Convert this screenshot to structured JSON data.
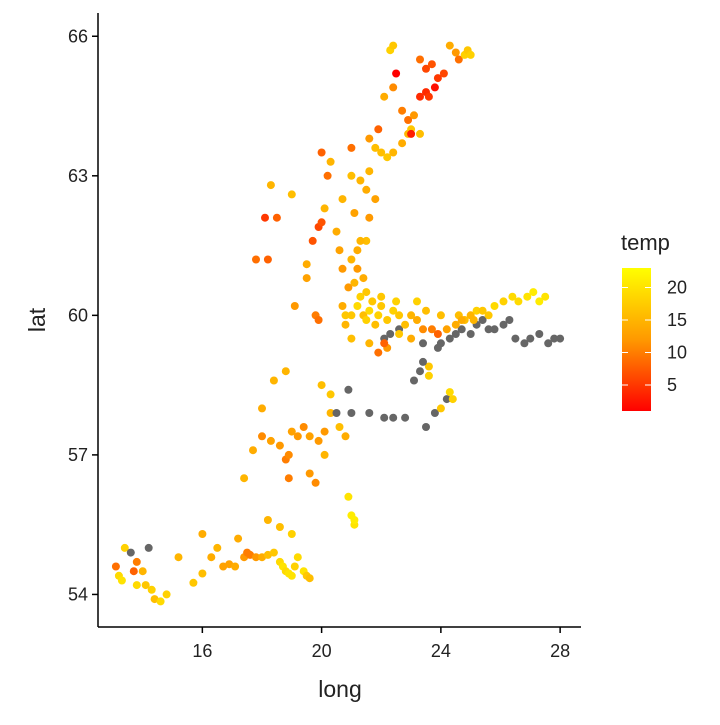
{
  "chart_data": {
    "type": "scatter",
    "title": "",
    "xlabel": "long",
    "ylabel": "lat",
    "xlim": [
      12.5,
      28.7
    ],
    "ylim": [
      53.3,
      66.5
    ],
    "xticks": [
      16,
      20,
      24,
      28
    ],
    "yticks": [
      54,
      57,
      60,
      63,
      66
    ],
    "grid": false,
    "legend": {
      "title": "temp",
      "placement": "right",
      "type": "colorbar",
      "min": 1,
      "max": 23,
      "ticks": [
        5,
        10,
        15,
        20
      ],
      "low_color": "#ff0000",
      "mid_color": "#ff9900",
      "high_color": "#ffff00"
    },
    "na_color": "#666666",
    "points": [
      [
        13.1,
        54.6,
        9
      ],
      [
        13.2,
        54.4,
        19
      ],
      [
        13.3,
        54.3,
        20
      ],
      [
        13.4,
        55.0,
        18
      ],
      [
        13.6,
        54.9,
        null
      ],
      [
        13.7,
        54.5,
        8
      ],
      [
        13.8,
        54.7,
        10
      ],
      [
        13.8,
        54.2,
        19
      ],
      [
        14.0,
        54.5,
        15
      ],
      [
        14.1,
        54.2,
        17
      ],
      [
        14.2,
        55.0,
        null
      ],
      [
        14.3,
        54.1,
        18
      ],
      [
        14.4,
        53.9,
        16
      ],
      [
        14.6,
        53.85,
        19
      ],
      [
        14.8,
        54.0,
        18
      ],
      [
        15.2,
        54.8,
        15
      ],
      [
        15.7,
        54.25,
        17
      ],
      [
        16.0,
        54.45,
        16
      ],
      [
        16.0,
        55.3,
        14
      ],
      [
        16.3,
        54.8,
        14
      ],
      [
        16.5,
        55.0,
        15
      ],
      [
        16.7,
        54.6,
        13
      ],
      [
        16.9,
        54.65,
        13
      ],
      [
        17.1,
        54.6,
        14
      ],
      [
        17.2,
        55.2,
        14
      ],
      [
        17.4,
        54.8,
        12
      ],
      [
        17.5,
        54.9,
        10
      ],
      [
        17.6,
        54.85,
        10
      ],
      [
        17.8,
        54.8,
        12
      ],
      [
        18.0,
        54.8,
        14
      ],
      [
        18.2,
        54.85,
        16
      ],
      [
        18.4,
        54.9,
        17
      ],
      [
        18.6,
        54.7,
        19
      ],
      [
        18.7,
        54.6,
        20
      ],
      [
        18.8,
        54.5,
        19
      ],
      [
        18.9,
        54.45,
        20
      ],
      [
        19.0,
        54.4,
        20
      ],
      [
        19.1,
        54.6,
        18
      ],
      [
        19.2,
        54.8,
        19
      ],
      [
        19.4,
        54.5,
        20
      ],
      [
        19.5,
        54.4,
        17
      ],
      [
        19.6,
        54.35,
        16
      ],
      [
        18.2,
        55.6,
        15
      ],
      [
        18.6,
        55.45,
        16
      ],
      [
        19.0,
        55.3,
        18
      ],
      [
        18.0,
        57.4,
        11
      ],
      [
        18.3,
        57.3,
        13
      ],
      [
        18.6,
        57.2,
        12
      ],
      [
        18.8,
        56.9,
        10
      ],
      [
        18.9,
        57.0,
        11
      ],
      [
        19.0,
        57.5,
        13
      ],
      [
        18.9,
        56.5,
        10
      ],
      [
        19.2,
        57.4,
        12
      ],
      [
        19.4,
        57.6,
        11
      ],
      [
        19.6,
        56.6,
        12
      ],
      [
        19.6,
        57.4,
        13
      ],
      [
        19.8,
        56.4,
        11
      ],
      [
        19.9,
        57.3,
        12
      ],
      [
        20.1,
        57.5,
        12
      ],
      [
        20.1,
        57.0,
        15
      ],
      [
        20.3,
        57.9,
        15
      ],
      [
        20.6,
        57.6,
        16
      ],
      [
        20.8,
        57.4,
        14
      ],
      [
        20.9,
        56.1,
        20
      ],
      [
        21.0,
        55.7,
        21
      ],
      [
        21.1,
        55.5,
        20
      ],
      [
        21.1,
        55.6,
        21
      ],
      [
        20.0,
        58.5,
        16
      ],
      [
        20.3,
        58.3,
        17
      ],
      [
        18.8,
        58.8,
        15
      ],
      [
        18.4,
        58.6,
        15
      ],
      [
        18.0,
        58.0,
        14
      ],
      [
        17.7,
        57.1,
        14
      ],
      [
        17.4,
        56.5,
        15
      ],
      [
        17.8,
        61.2,
        9
      ],
      [
        18.2,
        61.2,
        8
      ],
      [
        18.1,
        62.1,
        5
      ],
      [
        18.5,
        62.1,
        8
      ],
      [
        18.3,
        62.8,
        15
      ],
      [
        19.0,
        62.6,
        16
      ],
      [
        19.1,
        60.2,
        12
      ],
      [
        19.5,
        61.1,
        14
      ],
      [
        19.5,
        60.8,
        13
      ],
      [
        19.8,
        60.0,
        10
      ],
      [
        19.9,
        59.9,
        9
      ],
      [
        19.7,
        61.6,
        7
      ],
      [
        19.9,
        61.9,
        6
      ],
      [
        20.0,
        62.0,
        7
      ],
      [
        20.0,
        63.5,
        8
      ],
      [
        20.1,
        62.3,
        15
      ],
      [
        20.2,
        63.0,
        9
      ],
      [
        20.3,
        63.3,
        15
      ],
      [
        20.5,
        61.8,
        14
      ],
      [
        20.6,
        61.4,
        13
      ],
      [
        20.7,
        61.0,
        12
      ],
      [
        20.7,
        62.5,
        15
      ],
      [
        20.8,
        59.8,
        15
      ],
      [
        20.9,
        60.6,
        12
      ],
      [
        21.0,
        61.2,
        15
      ],
      [
        21.0,
        63.6,
        9
      ],
      [
        21.1,
        62.2,
        13
      ],
      [
        21.2,
        61.4,
        14
      ],
      [
        21.2,
        61.0,
        12
      ],
      [
        21.4,
        60.8,
        14
      ],
      [
        21.5,
        61.6,
        16
      ],
      [
        21.6,
        62.1,
        12
      ],
      [
        21.6,
        63.1,
        15
      ],
      [
        21.8,
        62.5,
        13
      ],
      [
        21.0,
        63.0,
        16
      ],
      [
        21.3,
        62.9,
        15
      ],
      [
        21.5,
        62.7,
        14
      ],
      [
        21.8,
        63.6,
        16
      ],
      [
        22.0,
        63.5,
        16
      ],
      [
        22.2,
        63.4,
        17
      ],
      [
        22.4,
        63.5,
        15
      ],
      [
        22.7,
        63.7,
        14
      ],
      [
        22.9,
        63.9,
        15
      ],
      [
        23.0,
        64.0,
        17
      ],
      [
        23.3,
        63.9,
        16
      ],
      [
        21.6,
        63.8,
        12
      ],
      [
        21.9,
        64.0,
        8
      ],
      [
        22.1,
        64.7,
        14
      ],
      [
        22.4,
        64.9,
        11
      ],
      [
        22.7,
        64.4,
        10
      ],
      [
        22.9,
        64.2,
        9
      ],
      [
        23.1,
        64.3,
        12
      ],
      [
        22.3,
        65.7,
        18
      ],
      [
        22.4,
        65.8,
        17
      ],
      [
        23.3,
        65.5,
        9
      ],
      [
        23.5,
        64.8,
        4
      ],
      [
        23.6,
        64.7,
        5
      ],
      [
        23.5,
        65.3,
        6
      ],
      [
        23.7,
        65.4,
        7
      ],
      [
        23.9,
        65.1,
        5
      ],
      [
        24.1,
        65.2,
        6
      ],
      [
        24.3,
        65.8,
        14
      ],
      [
        24.5,
        65.65,
        12
      ],
      [
        24.6,
        65.5,
        9
      ],
      [
        24.8,
        65.6,
        18
      ],
      [
        24.9,
        65.7,
        17
      ],
      [
        25.0,
        65.6,
        18
      ],
      [
        23.0,
        63.9,
        3
      ],
      [
        22.5,
        65.2,
        1
      ],
      [
        23.8,
        64.9,
        2
      ],
      [
        23.3,
        64.7,
        4
      ],
      [
        20.9,
        58.4,
        null
      ],
      [
        20.5,
        57.9,
        null
      ],
      [
        21.0,
        57.9,
        null
      ],
      [
        21.6,
        57.9,
        null
      ],
      [
        22.1,
        57.8,
        null
      ],
      [
        22.4,
        57.8,
        null
      ],
      [
        22.8,
        57.8,
        null
      ],
      [
        23.5,
        57.6,
        null
      ],
      [
        23.8,
        57.9,
        null
      ],
      [
        24.2,
        58.2,
        null
      ],
      [
        24.4,
        58.2,
        18
      ],
      [
        24.3,
        58.35,
        19
      ],
      [
        24.0,
        58.0,
        17
      ],
      [
        23.6,
        58.7,
        18
      ],
      [
        23.6,
        58.9,
        17
      ],
      [
        23.4,
        59.0,
        null
      ],
      [
        23.3,
        58.8,
        null
      ],
      [
        23.1,
        58.6,
        null
      ],
      [
        23.4,
        59.4,
        null
      ],
      [
        23.9,
        59.3,
        null
      ],
      [
        24.0,
        59.4,
        null
      ],
      [
        24.3,
        59.5,
        null
      ],
      [
        24.5,
        59.6,
        null
      ],
      [
        24.7,
        59.7,
        null
      ],
      [
        25.0,
        59.6,
        null
      ],
      [
        25.2,
        59.8,
        null
      ],
      [
        25.4,
        59.9,
        null
      ],
      [
        25.6,
        59.7,
        null
      ],
      [
        25.8,
        59.7,
        null
      ],
      [
        26.1,
        59.8,
        null
      ],
      [
        26.3,
        59.9,
        null
      ],
      [
        26.5,
        59.5,
        null
      ],
      [
        26.8,
        59.4,
        null
      ],
      [
        27.0,
        59.5,
        null
      ],
      [
        27.3,
        59.6,
        null
      ],
      [
        27.6,
        59.4,
        null
      ],
      [
        27.8,
        59.5,
        null
      ],
      [
        28.0,
        59.5,
        null
      ],
      [
        22.1,
        59.5,
        null
      ],
      [
        22.3,
        59.6,
        null
      ],
      [
        22.6,
        59.7,
        null
      ],
      [
        22.2,
        59.3,
        12
      ],
      [
        21.0,
        60.0,
        17
      ],
      [
        21.2,
        60.2,
        19
      ],
      [
        21.3,
        60.4,
        18
      ],
      [
        21.4,
        60.0,
        16
      ],
      [
        21.5,
        59.9,
        18
      ],
      [
        21.6,
        60.1,
        19
      ],
      [
        21.7,
        60.3,
        17
      ],
      [
        21.8,
        59.8,
        16
      ],
      [
        21.9,
        60.0,
        18
      ],
      [
        22.0,
        60.2,
        17
      ],
      [
        22.2,
        59.9,
        17
      ],
      [
        22.4,
        60.1,
        18
      ],
      [
        22.6,
        60.0,
        17
      ],
      [
        22.8,
        59.8,
        16
      ],
      [
        23.0,
        60.0,
        15
      ],
      [
        23.2,
        59.9,
        14
      ],
      [
        23.4,
        59.7,
        11
      ],
      [
        23.7,
        59.7,
        10
      ],
      [
        23.9,
        59.6,
        8
      ],
      [
        24.2,
        59.7,
        13
      ],
      [
        24.5,
        59.8,
        14
      ],
      [
        24.8,
        59.9,
        16
      ],
      [
        25.0,
        60.0,
        15
      ],
      [
        25.2,
        60.1,
        18
      ],
      [
        25.4,
        60.1,
        17
      ],
      [
        25.6,
        60.0,
        17
      ],
      [
        25.8,
        60.2,
        19
      ],
      [
        26.1,
        60.3,
        18
      ],
      [
        26.4,
        60.4,
        19
      ],
      [
        26.6,
        60.3,
        19
      ],
      [
        26.9,
        60.4,
        20
      ],
      [
        27.1,
        60.5,
        21
      ],
      [
        27.3,
        60.3,
        21
      ],
      [
        27.5,
        60.4,
        20
      ],
      [
        20.7,
        60.2,
        14
      ],
      [
        21.0,
        59.5,
        16
      ],
      [
        21.6,
        59.4,
        15
      ],
      [
        21.9,
        59.2,
        9
      ],
      [
        22.1,
        59.4,
        8
      ],
      [
        22.6,
        59.6,
        17
      ],
      [
        23.0,
        59.5,
        14
      ],
      [
        24.6,
        60.0,
        16
      ],
      [
        24.7,
        59.9,
        14
      ],
      [
        25.1,
        59.9,
        15
      ],
      [
        21.1,
        60.7,
        15
      ],
      [
        21.3,
        61.6,
        15
      ],
      [
        20.8,
        60.0,
        17
      ],
      [
        21.5,
        60.5,
        17
      ],
      [
        22.0,
        60.4,
        17
      ],
      [
        22.5,
        60.3,
        18
      ],
      [
        23.2,
        60.3,
        18
      ],
      [
        23.5,
        60.1,
        16
      ],
      [
        24.0,
        60.0,
        16
      ]
    ]
  }
}
